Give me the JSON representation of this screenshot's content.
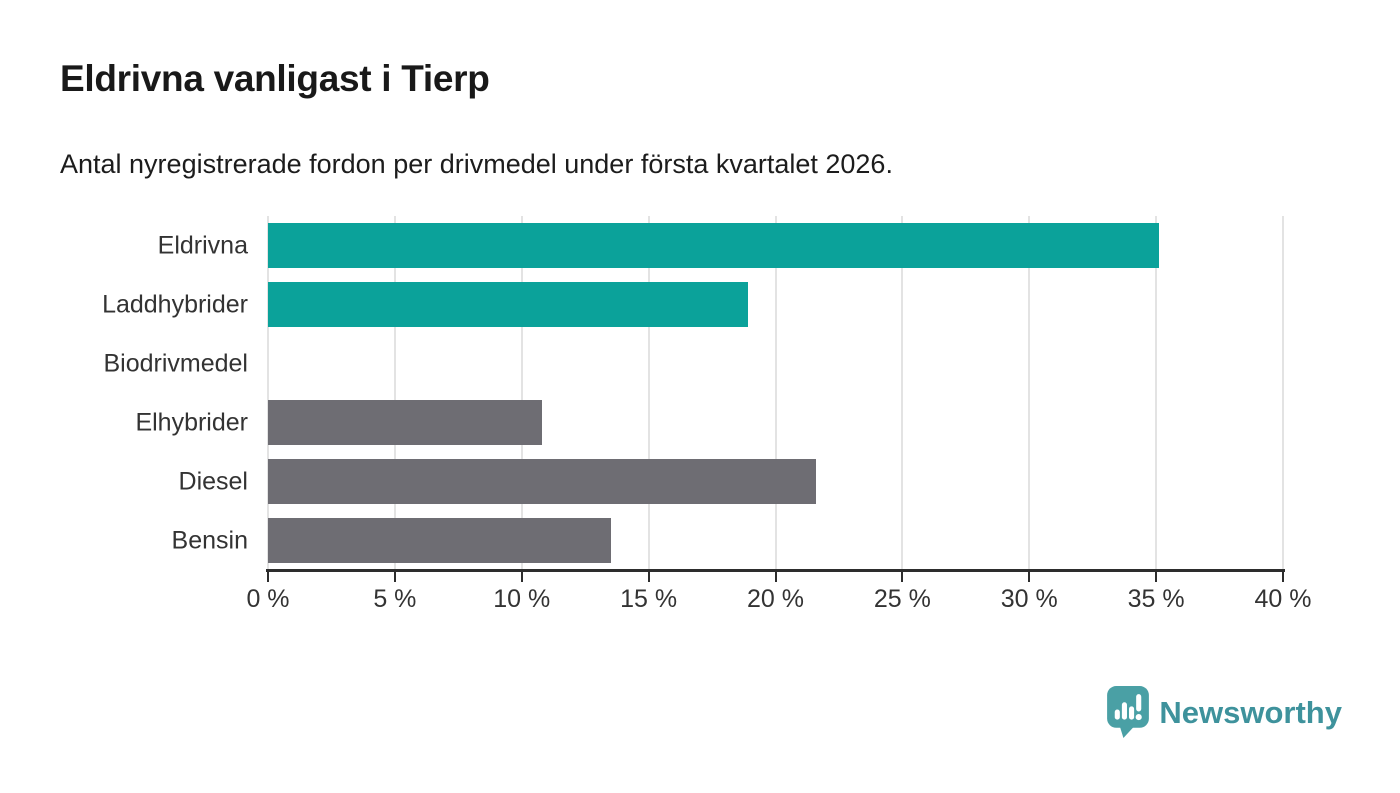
{
  "chart_data": {
    "type": "bar",
    "orientation": "horizontal",
    "title": "Eldrivna vanligast i Tierp",
    "subtitle": "Antal nyregistrerade fordon per drivmedel under första kvartalet 2026.",
    "categories": [
      "Eldrivna",
      "Laddhybrider",
      "Biodrivmedel",
      "Elhybrider",
      "Diesel",
      "Bensin"
    ],
    "values": [
      35.1,
      18.9,
      0,
      10.8,
      21.6,
      13.5
    ],
    "highlighted": [
      true,
      true,
      false,
      false,
      false,
      false
    ],
    "series_colors": {
      "highlight": "#0ba29a",
      "default": "#6e6d73"
    },
    "xlim": [
      0,
      40
    ],
    "x_tick_values": [
      0,
      5,
      10,
      15,
      20,
      25,
      30,
      35,
      40
    ],
    "x_tick_labels": [
      "0 %",
      "5 %",
      "10 %",
      "15 %",
      "20 %",
      "25 %",
      "30 %",
      "35 %",
      "40 %"
    ],
    "grid": true,
    "legend_position": "none"
  },
  "branding": {
    "logo_text": "Newsworthy",
    "logo_icon": "speech-bubble-bar-chart-icon",
    "logo_text_color": "#3e929c",
    "logo_icon_color": "#4aa0a5"
  },
  "colors": {
    "background": "#ffffff",
    "axis": "#2d2d2d",
    "grid": "#e3e3e3",
    "label_text": "#333333",
    "title_text": "#191919"
  }
}
